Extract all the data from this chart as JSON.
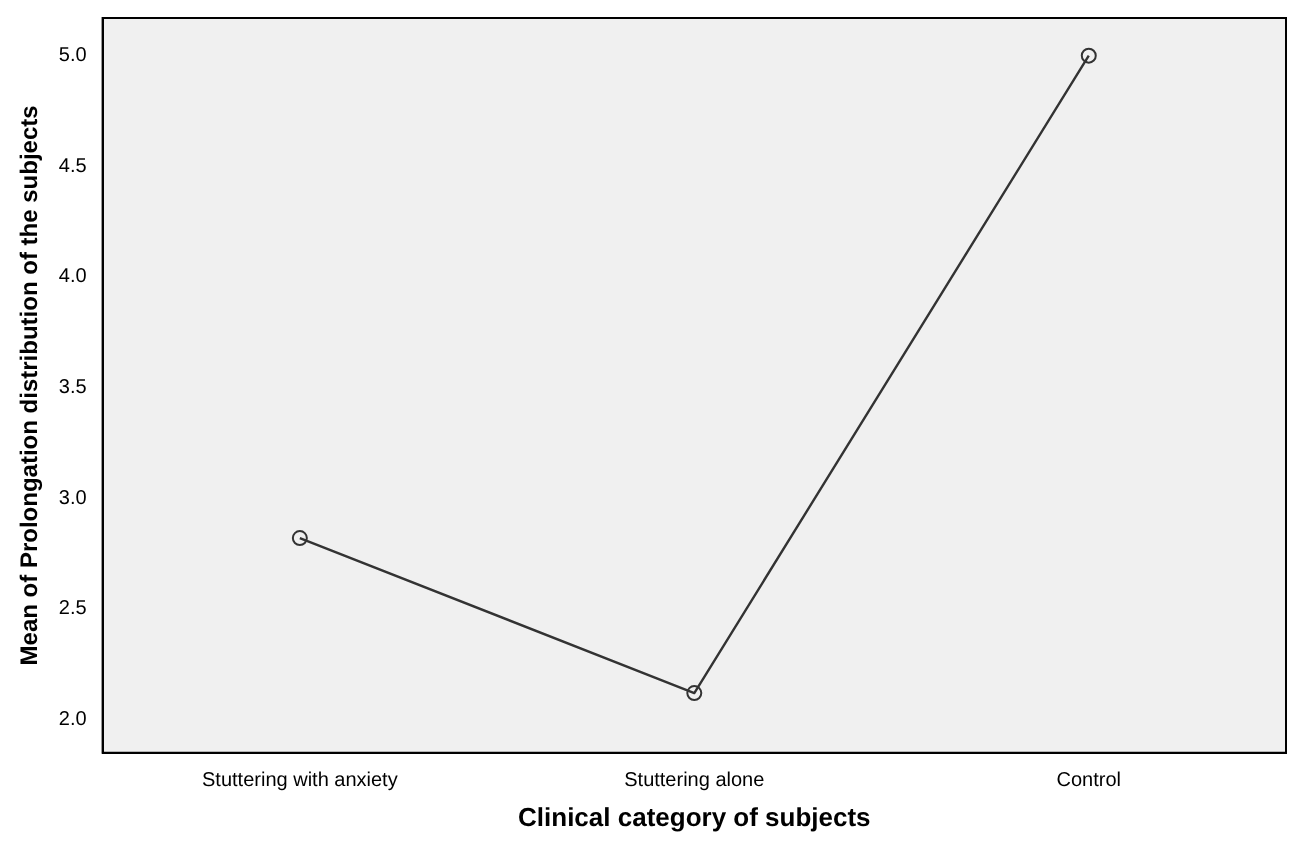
{
  "chart_data": {
    "type": "line",
    "xlabel": "Clinical category of subjects",
    "ylabel": "Mean of Prolongation distribution of the subjects",
    "categories": [
      "Stuttering with anxiety",
      "Stuttering alone",
      "Control"
    ],
    "series": [
      {
        "color": "#333333",
        "values": [
          2.82,
          2.12,
          5.0
        ]
      }
    ],
    "ylim": [
      1.85,
      5.17
    ],
    "yticks": [
      {
        "value": 2,
        "label": "2.0"
      },
      {
        "value": 2.5,
        "label": "2.5"
      },
      {
        "value": 3,
        "label": "3.0"
      },
      {
        "value": 3.5,
        "label": "3.5"
      },
      {
        "value": 4,
        "label": "4.0"
      },
      {
        "value": 4.5,
        "label": "4.5"
      },
      {
        "value": 5,
        "label": "5.0"
      }
    ],
    "grid": false,
    "legend": false,
    "marker": "circle",
    "line_style": "solid"
  }
}
